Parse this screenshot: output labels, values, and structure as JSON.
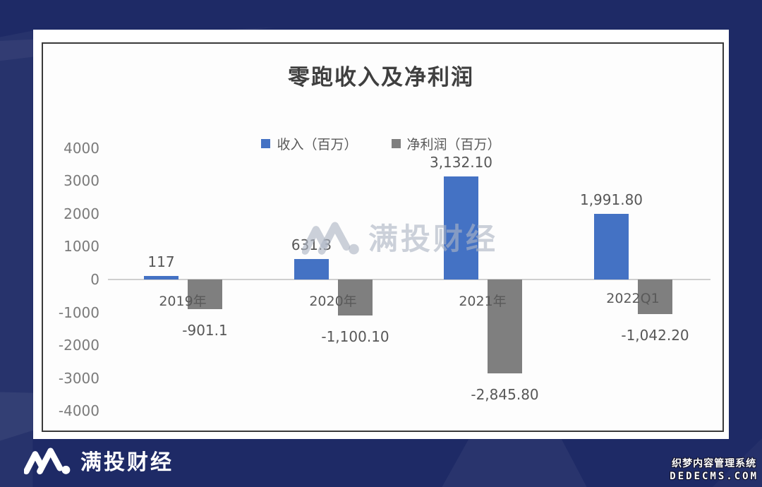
{
  "background": {
    "base_color": "#1e2a66"
  },
  "brand": {
    "watermark_text": "满投财经",
    "footer_logo_text": "满投财经"
  },
  "cms_watermark": {
    "line1": "织梦内容管理系统",
    "line2": "DEDECMS.COM"
  },
  "chart_data": {
    "type": "bar",
    "title": "零跑收入及净利润",
    "categories": [
      "2019年",
      "2020年",
      "2021年",
      "2022Q1"
    ],
    "series": [
      {
        "name": "收入（百万）",
        "color": "#4472c4",
        "values": [
          117,
          631.3,
          3132.1,
          1991.8
        ],
        "labels": [
          "117",
          "631.3",
          "3,132.10",
          "1,991.80"
        ]
      },
      {
        "name": "净利润（百万）",
        "color": "#7f7f7f",
        "values": [
          -901.1,
          -1100.1,
          -2845.8,
          -1042.2
        ],
        "labels": [
          "-901.1",
          "-1,100.10",
          "-2,845.80",
          "-1,042.20"
        ]
      }
    ],
    "y_ticks": [
      4000,
      3000,
      2000,
      1000,
      0,
      -1000,
      -2000,
      -3000,
      -4000
    ],
    "ylim": [
      -4000,
      4000
    ],
    "grid": false,
    "legend_position": "top-center"
  }
}
